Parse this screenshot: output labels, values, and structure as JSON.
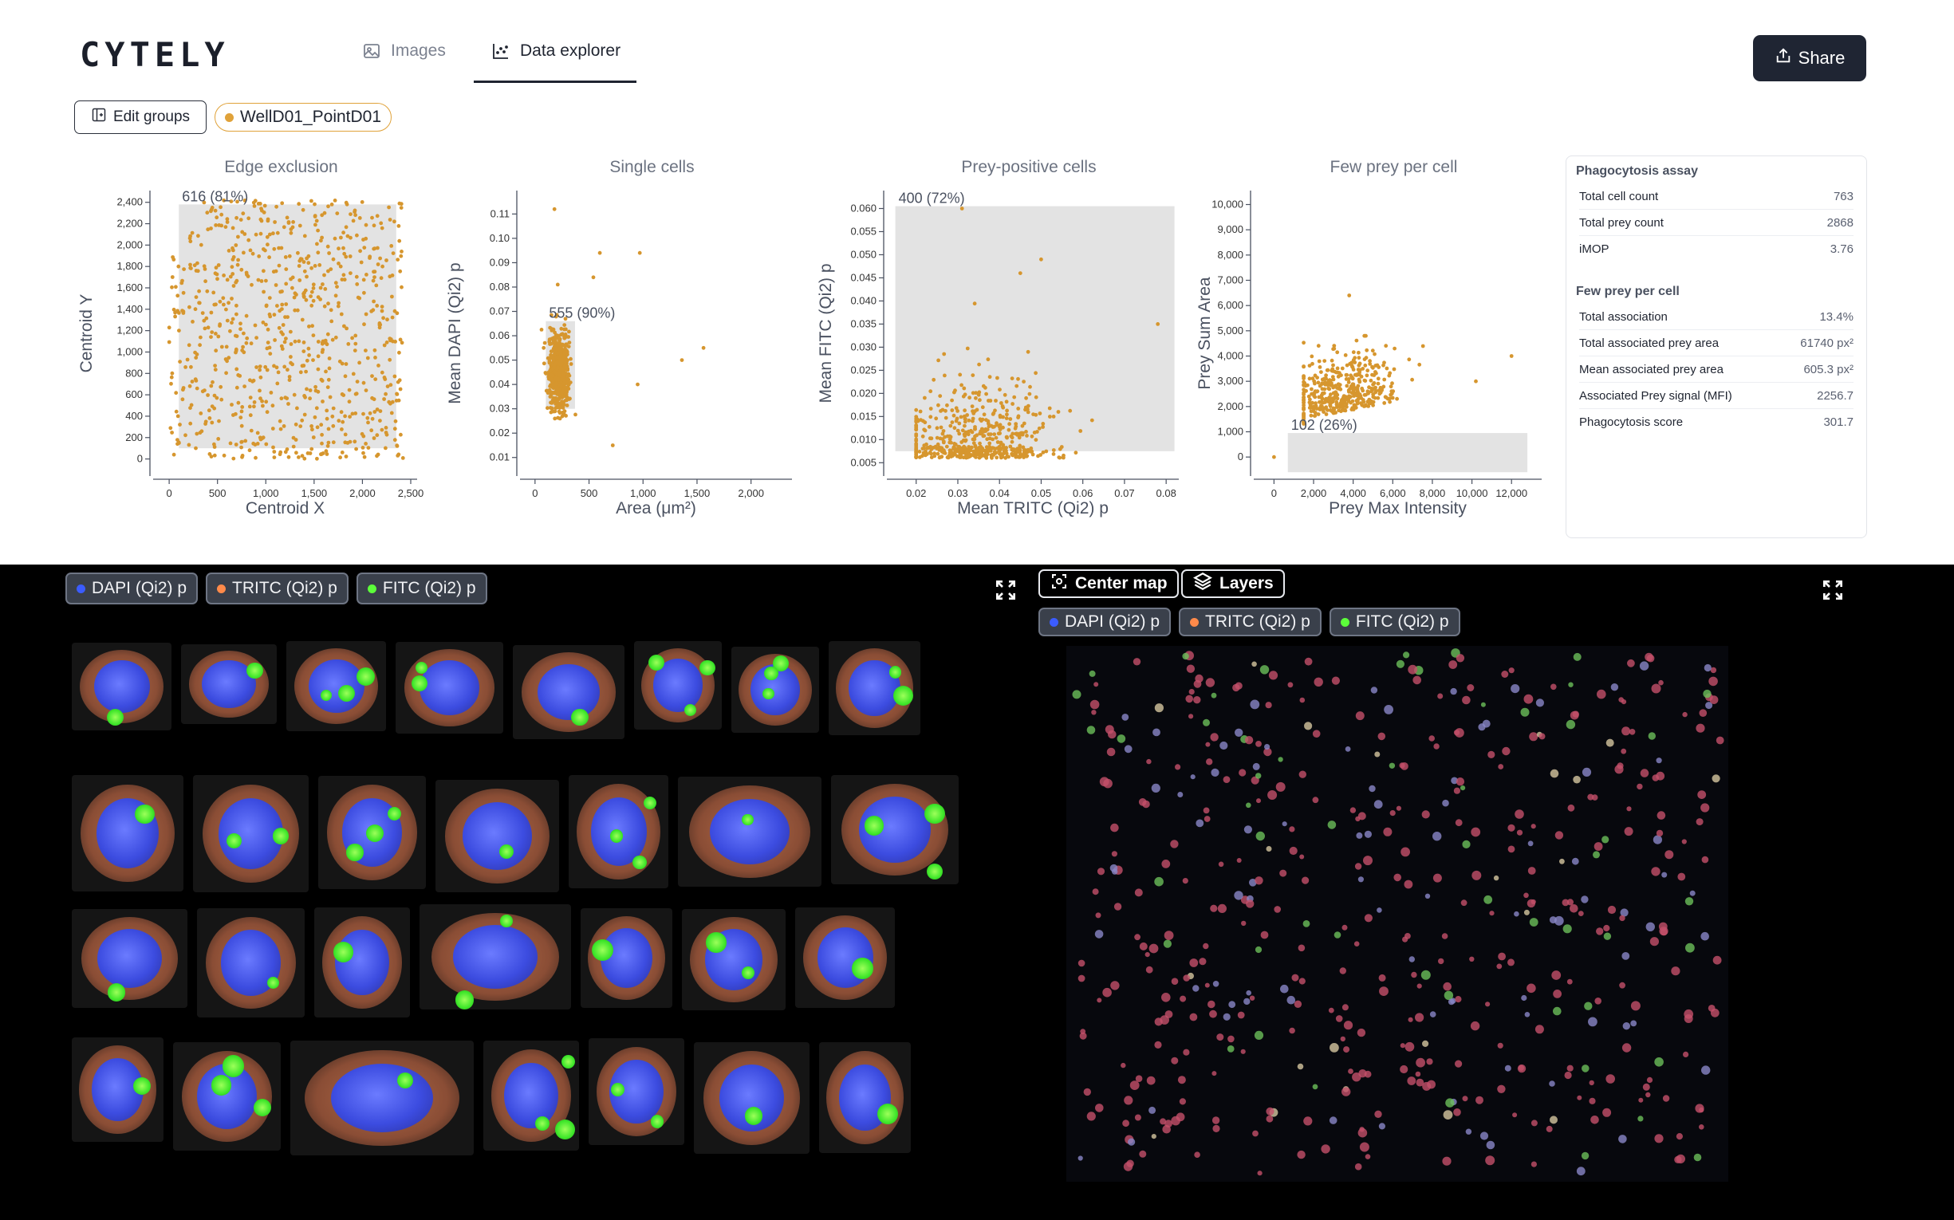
{
  "app": {
    "logo": "CYTELY"
  },
  "tabs": [
    {
      "label": "Images",
      "icon": "image-icon",
      "active": false
    },
    {
      "label": "Data explorer",
      "icon": "chart-icon",
      "active": true
    }
  ],
  "toolbar": {
    "share_label": "Share",
    "edit_groups_label": "Edit groups",
    "group_chip_label": "WellD01_PointD01",
    "group_color": "#e0a23a"
  },
  "colors": {
    "point": "#d6962e",
    "gate_fill": "#e3e3e3",
    "dark_button": "#1f2533"
  },
  "chart_data": [
    {
      "type": "scatter",
      "title": "Edge exclusion",
      "xlabel": "Centroid X",
      "ylabel": "Centroid Y",
      "xlim": [
        -100,
        2500
      ],
      "ylim": [
        -100,
        2450
      ],
      "xticks": [
        0,
        500,
        1000,
        1500,
        2000,
        2500
      ],
      "xtick_labels": [
        "0",
        "500",
        "1,000",
        "1,500",
        "2,000",
        "2,500"
      ],
      "yticks": [
        0,
        200,
        400,
        600,
        800,
        1000,
        1200,
        1400,
        1600,
        1800,
        2000,
        2200,
        2400
      ],
      "ytick_labels": [
        "0",
        "200",
        "400",
        "600",
        "800",
        "1,000",
        "1,200",
        "1,400",
        "1,600",
        "1,800",
        "2,000",
        "2,200",
        "2,400"
      ],
      "gate": {
        "x": [
          100,
          2350
        ],
        "y": [
          100,
          2380
        ],
        "label": "616 (81%)"
      },
      "points_n": 763,
      "distribution": "uniform",
      "x_range": [
        0,
        2420
      ],
      "y_range": [
        0,
        2420
      ]
    },
    {
      "type": "scatter",
      "title": "Single cells",
      "xlabel": "Area (μm²)",
      "ylabel": "Mean DAPI (Qi2) p",
      "xlim": [
        -80,
        2320
      ],
      "ylim": [
        0.005,
        0.117
      ],
      "xticks": [
        0,
        500,
        1000,
        1500,
        2000
      ],
      "xtick_labels": [
        "0",
        "500",
        "1,000",
        "1,500",
        "2,000"
      ],
      "yticks": [
        0.01,
        0.02,
        0.03,
        0.04,
        0.05,
        0.06,
        0.07,
        0.08,
        0.09,
        0.1,
        0.11
      ],
      "ytick_labels": [
        "0.01",
        "0.02",
        "0.03",
        "0.04",
        "0.05",
        "0.06",
        "0.07",
        "0.08",
        "0.09",
        "0.10",
        "0.11"
      ],
      "gate": {
        "x": [
          100,
          370
        ],
        "y": [
          0.03,
          0.066
        ],
        "label": "555 (90%)"
      },
      "points_n": 700,
      "extra_points": [
        [
          180,
          0.112
        ],
        [
          600,
          0.094
        ],
        [
          970,
          0.094
        ],
        [
          540,
          0.084
        ],
        [
          210,
          0.081
        ],
        [
          1360,
          0.05
        ],
        [
          1560,
          0.055
        ],
        [
          950,
          0.04
        ],
        [
          720,
          0.015
        ],
        [
          80,
          0.055
        ]
      ]
    },
    {
      "type": "scatter",
      "title": "Prey-positive cells",
      "xlabel": "Mean TRITC (Qi2) p",
      "ylabel": "Mean FITC (Qi2) p",
      "xlim": [
        0.0145,
        0.0815
      ],
      "ylim": [
        0.0035,
        0.0625
      ],
      "xticks": [
        0.02,
        0.03,
        0.04,
        0.05,
        0.06,
        0.07,
        0.08
      ],
      "xtick_labels": [
        "0.02",
        "0.03",
        "0.04",
        "0.05",
        "0.06",
        "0.07",
        "0.08"
      ],
      "yticks": [
        0.005,
        0.01,
        0.015,
        0.02,
        0.025,
        0.03,
        0.035,
        0.04,
        0.045,
        0.05,
        0.055,
        0.06
      ],
      "ytick_labels": [
        "0.005",
        "0.010",
        "0.015",
        "0.020",
        "0.025",
        "0.030",
        "0.035",
        "0.040",
        "0.045",
        "0.050",
        "0.055",
        "0.060"
      ],
      "gate": {
        "x": [
          0.015,
          0.082
        ],
        "y": [
          0.0075,
          0.0605
        ],
        "label": "400 (72%)"
      },
      "points_n": 560
    },
    {
      "type": "scatter",
      "title": "Few prey per cell",
      "xlabel": "Prey Max Intensity",
      "ylabel": "Prey Sum Area",
      "xlim": [
        -700,
        13200
      ],
      "ylim": [
        -500,
        10300
      ],
      "xticks": [
        0,
        2000,
        4000,
        6000,
        8000,
        10000,
        12000
      ],
      "xtick_labels": [
        "0",
        "2,000",
        "4,000",
        "6,000",
        "8,000",
        "10,000",
        "12,000"
      ],
      "yticks": [
        0,
        1000,
        2000,
        3000,
        4000,
        5000,
        6000,
        7000,
        8000,
        9000,
        10000
      ],
      "ytick_labels": [
        "0",
        "1,000",
        "2,000",
        "3,000",
        "4,000",
        "5,000",
        "6,000",
        "7,000",
        "8,000",
        "9,000",
        "10,000"
      ],
      "gate": {
        "x": [
          700,
          12800
        ],
        "y": [
          -600,
          950
        ],
        "label": "102 (26%)"
      },
      "points_n": 420
    }
  ],
  "stats": {
    "sections": [
      {
        "title": "Phagocytosis assay",
        "rows": [
          {
            "label": "Total cell count",
            "value": "763"
          },
          {
            "label": "Total prey count",
            "value": "2868"
          },
          {
            "label": "iMOP",
            "value": "3.76"
          }
        ]
      },
      {
        "title": "Few prey per cell",
        "rows": [
          {
            "label": "Total association",
            "value": "13.4%"
          },
          {
            "label": "Total associated prey area",
            "value": "61740 px²"
          },
          {
            "label": "Mean associated prey area",
            "value": "605.3 px²"
          },
          {
            "label": "Associated Prey signal (MFI)",
            "value": "2256.7"
          },
          {
            "label": "Phagocytosis score",
            "value": "301.7"
          }
        ]
      }
    ]
  },
  "channels": [
    {
      "label": "DAPI (Qi2) p",
      "color": "#3b5cff"
    },
    {
      "label": "TRITC (Qi2) p",
      "color": "#ff8a4a"
    },
    {
      "label": "FITC (Qi2) p",
      "color": "#5cff3a"
    }
  ],
  "map": {
    "center_label": "Center map",
    "layers_label": "Layers",
    "fullscreen_icon": "expand-icon"
  }
}
